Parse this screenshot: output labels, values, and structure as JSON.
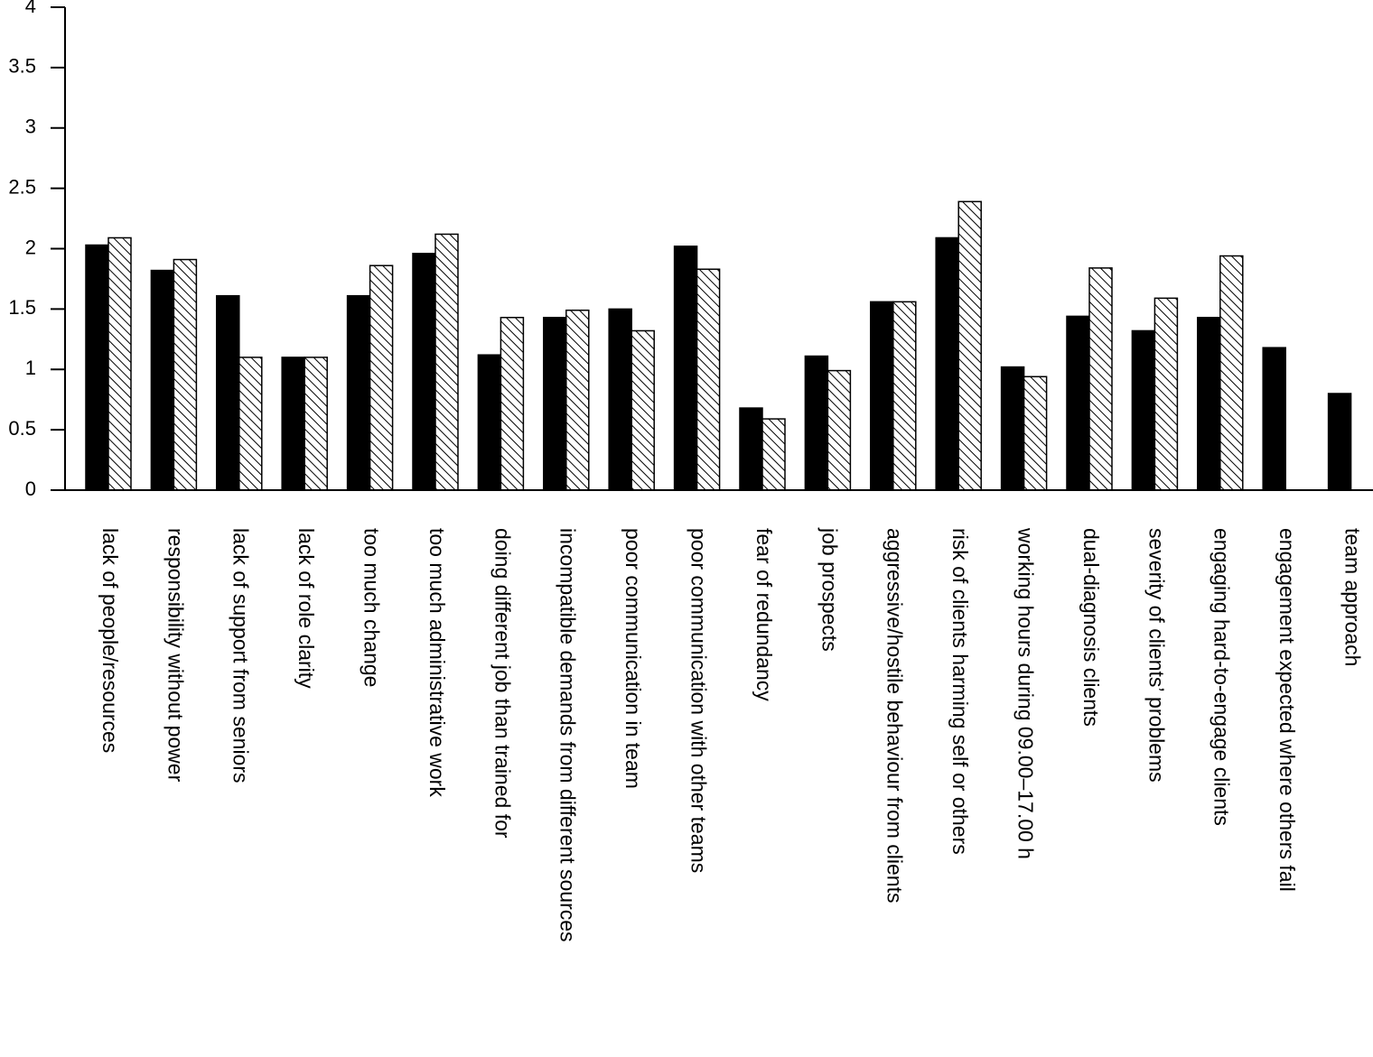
{
  "chart_data": {
    "type": "bar",
    "categories": [
      "lack of people/resources",
      "responsibility without power",
      "lack of support from seniors",
      "lack of role clarity",
      "too much change",
      "too much administrative work",
      "doing different job than trained for",
      "incompatible demands from different sources",
      "poor communication in team",
      "poor communication with other teams",
      "fear of redundancy",
      "job prospects",
      "aggressive/hostile behaviour from clients",
      "risk of clients harming self or others",
      "working hours during 09.00–17.00 h",
      "dual-diagnosis clients",
      "severity of clients’ problems",
      "engaging hard-to-engage clients",
      "engagement expected where others fail",
      "team approach"
    ],
    "series": [
      {
        "color": "#000000",
        "values": [
          2.03,
          1.82,
          1.61,
          1.1,
          1.61,
          1.96,
          1.12,
          1.43,
          1.5,
          2.02,
          0.68,
          1.11,
          1.56,
          2.09,
          1.02,
          1.44,
          1.32,
          1.43,
          1.18,
          0.8
        ]
      },
      {
        "color": "#000000",
        "pattern": "diagonal-hatch",
        "values": [
          2.09,
          1.91,
          1.1,
          1.1,
          1.86,
          2.12,
          1.43,
          1.49,
          1.32,
          1.83,
          0.59,
          0.99,
          1.56,
          2.39,
          0.94,
          1.84,
          1.59,
          1.94,
          null,
          null
        ]
      }
    ],
    "ylim": [
      0,
      4
    ],
    "yticks": [
      0,
      0.5,
      1,
      1.5,
      2,
      2.5,
      3,
      3.5,
      4
    ],
    "grid": false
  }
}
